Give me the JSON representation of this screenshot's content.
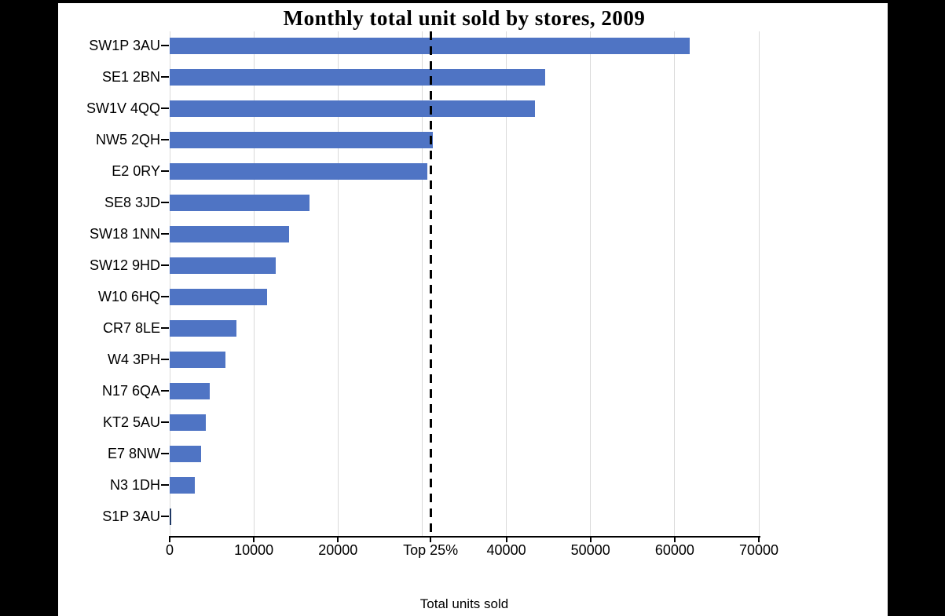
{
  "window": {
    "background": "#FFFFFF",
    "frame_color": "#000000"
  },
  "chart_data": {
    "type": "bar",
    "orientation": "horizontal",
    "title": "Monthly total unit sold by stores, 2009",
    "xlabel": "Total units sold",
    "ylabel": "",
    "categories": [
      "SW1P 3AU",
      "SE1 2BN",
      "SW1V 4QQ",
      "NW5 2QH",
      "E2 0RY",
      "SE8 3JD",
      "SW18 1NN",
      "SW12 9HD",
      "W10 6HQ",
      "CR7 8LE",
      "W4 3PH",
      "N17 6QA",
      "KT2 5AU",
      "E7 8NW",
      "N3 1DH",
      "S1P 3AU"
    ],
    "values": [
      61800,
      44600,
      43400,
      31300,
      30600,
      16600,
      14200,
      12600,
      11600,
      7900,
      6600,
      4800,
      4300,
      3700,
      3000,
      100
    ],
    "xlim": [
      0,
      70000
    ],
    "x_ticks": [
      {
        "value": 0,
        "label": "0"
      },
      {
        "value": 10000,
        "label": "10000"
      },
      {
        "value": 20000,
        "label": "20000"
      },
      {
        "value": 31000,
        "label": "Top 25%"
      },
      {
        "value": 40000,
        "label": "40000"
      },
      {
        "value": 50000,
        "label": "50000"
      },
      {
        "value": 60000,
        "label": "60000"
      },
      {
        "value": 70000,
        "label": "70000"
      }
    ],
    "gridline_values": [
      0,
      10000,
      20000,
      30000,
      40000,
      50000,
      60000,
      70000
    ],
    "reference_line": {
      "value": 31000,
      "label": "Top 25%",
      "style": "dashed",
      "color": "#000000"
    },
    "grid": "vertical",
    "legend_position": "none",
    "colors": {
      "bar": "#4F74C4",
      "near_zero_bar": "#1F3864",
      "grid": "#D9D9D9",
      "axis": "#000000",
      "text": "#000000"
    }
  }
}
